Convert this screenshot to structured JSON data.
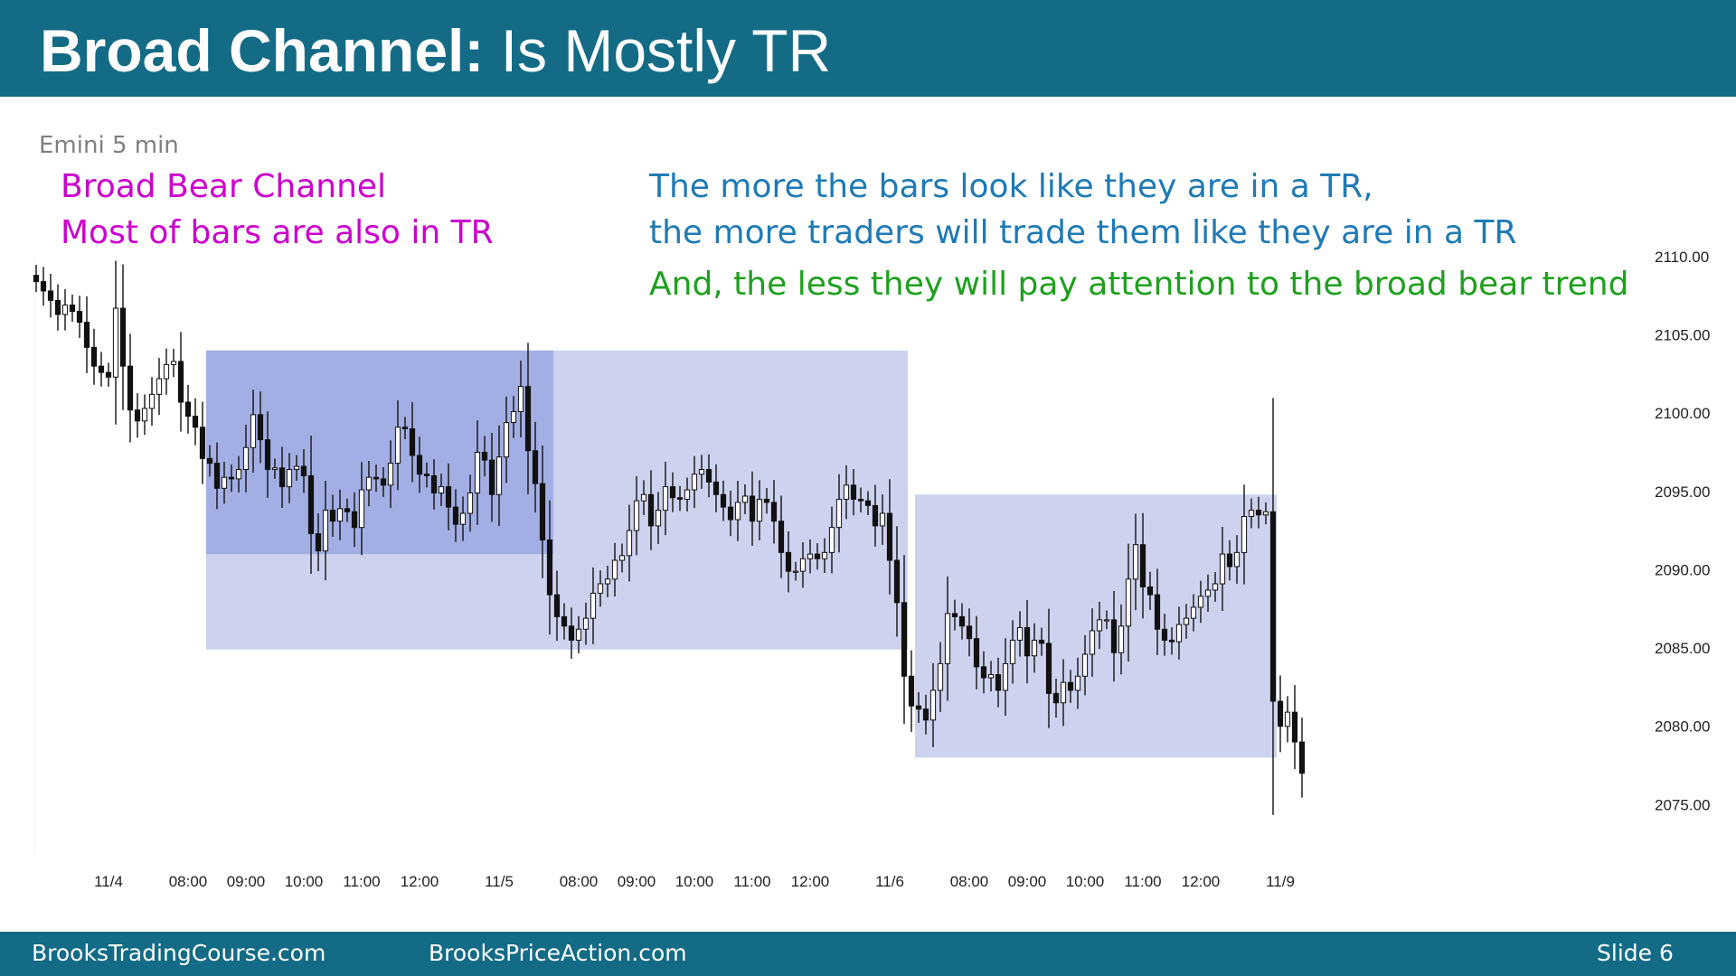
{
  "header": {
    "title_bold": "Broad Channel:",
    "title_rest": " Is Mostly TR"
  },
  "subtitle": "Emini 5 min",
  "annotations": {
    "left_line1": "Broad Bear Channel",
    "left_line2": "Most of bars are also in TR",
    "right_line1": "The more the bars look like they are in a TR,",
    "right_line2": "the more traders will trade them like they are in a TR",
    "right_line3": "And, the less they will pay attention to the broad bear trend"
  },
  "footer": {
    "site1": "BrooksTradingCourse.com",
    "site2": "BrooksPriceAction.com",
    "slide": "Slide  6"
  },
  "colors": {
    "header_bg": "#136b86",
    "magenta": "#cc00cc",
    "blue": "#1f7ab5",
    "green": "#1ea01e",
    "range_light": "#cdd3ef",
    "range_dark": "#a3afe4",
    "candle": "#111111"
  },
  "chart_data": {
    "type": "candlestick",
    "title": "",
    "y_ticks": [
      "2110.00",
      "2105.00",
      "2100.00",
      "2095.00",
      "2090.00",
      "2085.00",
      "2080.00",
      "2075.00"
    ],
    "ylim": [
      2073,
      2110.8
    ],
    "x_labels": [
      {
        "label": "11/4",
        "index": 10
      },
      {
        "label": "08:00",
        "index": 21
      },
      {
        "label": "09:00",
        "index": 29
      },
      {
        "label": "10:00",
        "index": 37
      },
      {
        "label": "11:00",
        "index": 45
      },
      {
        "label": "12:00",
        "index": 53
      },
      {
        "label": "11/5",
        "index": 64
      },
      {
        "label": "08:00",
        "index": 75
      },
      {
        "label": "09:00",
        "index": 83
      },
      {
        "label": "10:00",
        "index": 91
      },
      {
        "label": "11:00",
        "index": 99
      },
      {
        "label": "12:00",
        "index": 107
      },
      {
        "label": "11/6",
        "index": 118
      },
      {
        "label": "08:00",
        "index": 129
      },
      {
        "label": "09:00",
        "index": 137
      },
      {
        "label": "10:00",
        "index": 145
      },
      {
        "label": "11:00",
        "index": 153
      },
      {
        "label": "12:00",
        "index": 161
      },
      {
        "label": "11/9",
        "index": 172
      }
    ],
    "trading_ranges": [
      {
        "name": "range-1",
        "start_index": 24,
        "end_index": 120,
        "low": 2084.9,
        "high": 2104.0,
        "shade": "light"
      },
      {
        "name": "range-2",
        "start_index": 24,
        "end_index": 71,
        "low": 2091.0,
        "high": 2104.0,
        "shade": "dark"
      },
      {
        "name": "range-3",
        "start_index": 122,
        "end_index": 171,
        "low": 2078.0,
        "high": 2094.8,
        "shade": "light"
      }
    ],
    "close": [
      2108.4,
      2107.8,
      2107.2,
      2106.3,
      2106.9,
      2106.5,
      2105.8,
      2104.2,
      2103.0,
      2102.6,
      2102.3,
      2106.7,
      2103.0,
      2100.2,
      2099.5,
      2100.3,
      2101.2,
      2102.2,
      2103.1,
      2103.3,
      2100.7,
      2099.8,
      2099.1,
      2097.1,
      2096.8,
      2095.2,
      2095.9,
      2095.8,
      2096.4,
      2097.8,
      2099.9,
      2098.3,
      2096.4,
      2096.5,
      2095.3,
      2096.4,
      2096.6,
      2096.0,
      2092.3,
      2091.2,
      2093.8,
      2093.1,
      2093.9,
      2093.7,
      2092.7,
      2095.1,
      2095.9,
      2095.8,
      2095.4,
      2096.8,
      2099.1,
      2099.0,
      2097.3,
      2096.1,
      2096.0,
      2094.9,
      2095.3,
      2094.0,
      2092.9,
      2093.6,
      2094.9,
      2097.5,
      2097.0,
      2094.8,
      2097.2,
      2099.4,
      2100.1,
      2101.7,
      2097.6,
      2095.5,
      2091.9,
      2088.4,
      2087.0,
      2086.4,
      2085.5,
      2086.2,
      2086.9,
      2088.5,
      2089.1,
      2089.4,
      2090.6,
      2090.9,
      2092.5,
      2094.4,
      2094.8,
      2092.8,
      2093.8,
      2095.3,
      2094.6,
      2094.5,
      2095.1,
      2096.1,
      2096.4,
      2095.6,
      2094.8,
      2094.0,
      2093.2,
      2094.3,
      2094.7,
      2093.1,
      2094.5,
      2094.3,
      2093.1,
      2091.1,
      2089.9,
      2089.9,
      2090.7,
      2091.0,
      2090.7,
      2091.1,
      2092.7,
      2094.5,
      2095.4,
      2094.5,
      2094.4,
      2094.1,
      2092.8,
      2093.6,
      2090.6,
      2087.9,
      2083.2,
      2081.3,
      2081.1,
      2080.4,
      2082.3,
      2084.0,
      2087.2,
      2087.0,
      2086.4,
      2085.6,
      2083.8,
      2083.1,
      2083.3,
      2082.3,
      2084.0,
      2085.5,
      2086.3,
      2084.5,
      2085.5,
      2085.3,
      2082.1,
      2081.5,
      2082.8,
      2082.3,
      2083.2,
      2084.6,
      2086.1,
      2086.8,
      2086.8,
      2084.7,
      2086.4,
      2089.4,
      2091.6,
      2088.9,
      2088.4,
      2086.2,
      2085.5,
      2085.4,
      2086.5,
      2086.9,
      2087.6,
      2088.3,
      2088.7,
      2089.1,
      2091.0,
      2090.2,
      2091.1,
      2093.4,
      2093.8,
      2093.5,
      2093.7,
      2081.6,
      2080.0,
      2080.9,
      2079.0,
      2077.0
    ]
  }
}
